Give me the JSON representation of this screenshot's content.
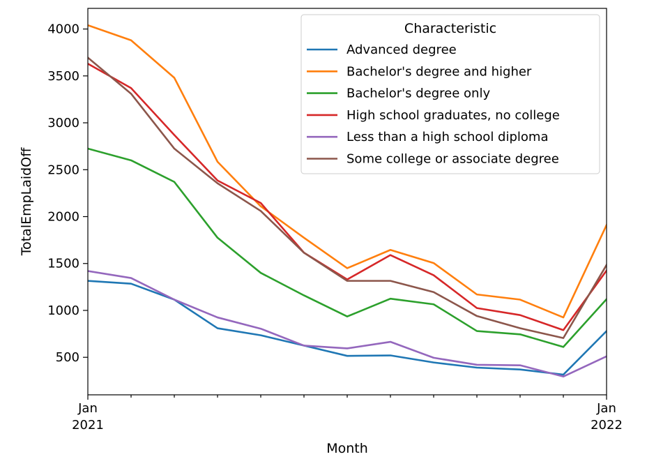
{
  "chart_data": {
    "type": "line",
    "title": "",
    "xlabel": "Month",
    "ylabel": "TotalEmpLaidOff",
    "x": [
      "2021-01",
      "2021-02",
      "2021-03",
      "2021-04",
      "2021-05",
      "2021-06",
      "2021-07",
      "2021-08",
      "2021-09",
      "2021-10",
      "2021-11",
      "2021-12",
      "2022-01"
    ],
    "x_tick_labels": [
      {
        "index": 0,
        "month": "Jan",
        "year": "2021"
      },
      {
        "index": 12,
        "month": "Jan",
        "year": "2022"
      }
    ],
    "y_ticks": [
      500,
      1000,
      1500,
      2000,
      2500,
      3000,
      3500,
      4000
    ],
    "ylim": [
      100,
      4220
    ],
    "grid": false,
    "legend": {
      "title": "Characteristic",
      "placement": "upper-right"
    },
    "series": [
      {
        "name": "Advanced degree",
        "color": "#1f77b4",
        "values": [
          1315,
          1285,
          1115,
          810,
          735,
          625,
          515,
          520,
          445,
          390,
          370,
          315,
          780
        ]
      },
      {
        "name": "Bachelor's degree and higher",
        "color": "#ff7f0e",
        "values": [
          4040,
          3880,
          3480,
          2585,
          2110,
          1775,
          1450,
          1645,
          1505,
          1170,
          1115,
          925,
          1910
        ]
      },
      {
        "name": "Bachelor's degree only",
        "color": "#2ca02c",
        "values": [
          2725,
          2600,
          2370,
          1775,
          1400,
          1160,
          935,
          1125,
          1065,
          780,
          745,
          610,
          1120
        ]
      },
      {
        "name": "High school graduates, no college",
        "color": "#d62728",
        "values": [
          3630,
          3370,
          2870,
          2385,
          2145,
          1615,
          1330,
          1590,
          1375,
          1025,
          950,
          790,
          1425
        ]
      },
      {
        "name": "Less than a high school diploma",
        "color": "#9467bd",
        "values": [
          1420,
          1345,
          1115,
          925,
          805,
          625,
          595,
          665,
          495,
          420,
          415,
          295,
          510
        ]
      },
      {
        "name": "Some college or associate degree",
        "color": "#8c564b",
        "values": [
          3695,
          3310,
          2725,
          2355,
          2060,
          1615,
          1315,
          1315,
          1195,
          940,
          810,
          705,
          1485
        ]
      }
    ]
  }
}
